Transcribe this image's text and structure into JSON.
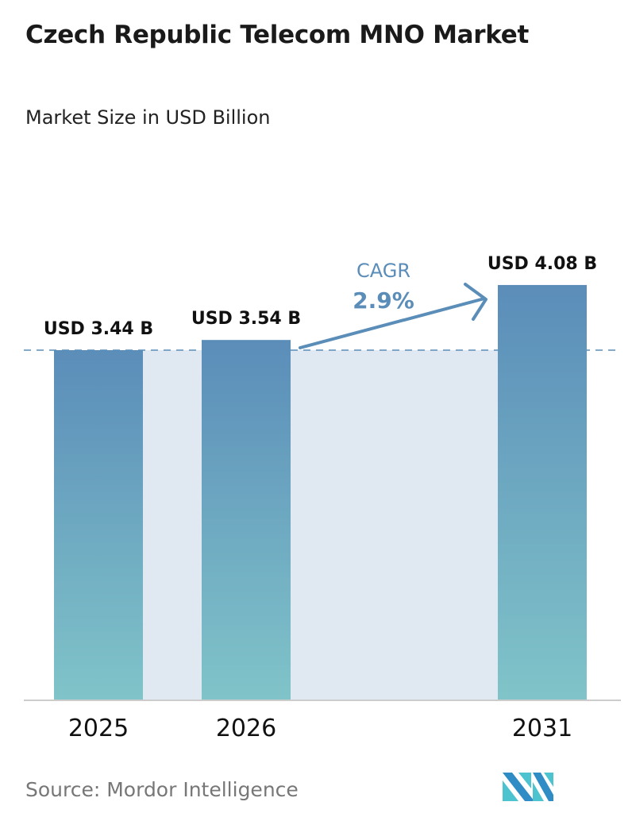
{
  "header": {
    "title": "Czech Republic Telecom MNO Market",
    "subtitle": "Market Size in USD Billion"
  },
  "chart_data": {
    "type": "bar",
    "categories": [
      "2025",
      "2026",
      "2031"
    ],
    "values": [
      3.44,
      3.54,
      4.08
    ],
    "data_labels": [
      "USD 3.44 B",
      "USD 3.54 B",
      "USD 4.08 B"
    ],
    "title": "Czech Republic Telecom MNO Market",
    "subtitle": "Market Size in USD Billion",
    "xlabel": "",
    "ylabel": "",
    "grid": false,
    "annotation": {
      "label": "CAGR",
      "value": "2.9%"
    },
    "colors": {
      "bar_top": "#5b8db9",
      "bar_bottom": "#80c4c9",
      "band": "#e0e9f1",
      "accent": "#5b8db9"
    }
  },
  "footer": {
    "source": "Source:  Mordor Intelligence",
    "logo": "Mordor Intelligence"
  }
}
